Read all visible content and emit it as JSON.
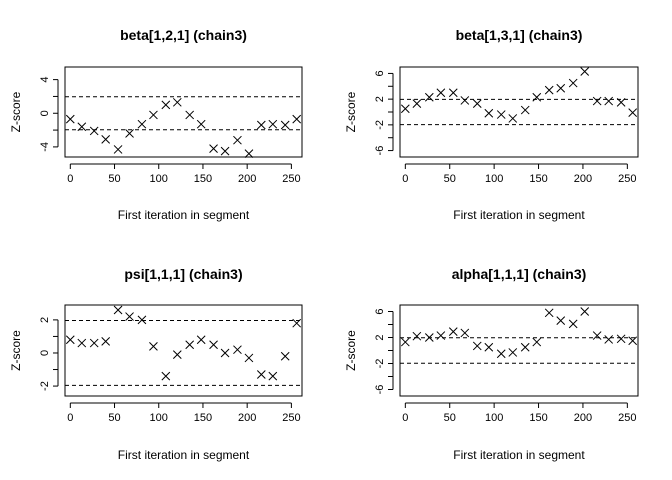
{
  "chart_data": [
    {
      "type": "scatter",
      "title": "beta[1,2,1] (chain3)",
      "xlabel": "First iteration in segment",
      "ylabel": "Z-score",
      "xlim": [
        -6,
        262
      ],
      "ylim": [
        -5.2,
        5.5
      ],
      "xticks": [
        0,
        50,
        100,
        150,
        200,
        250
      ],
      "xtick_labels": [
        "0",
        "50",
        "100",
        "150",
        "200",
        "250"
      ],
      "yticks": [
        -4,
        0,
        4
      ],
      "ytick_labels": [
        "-4",
        "0",
        "4"
      ],
      "yticks_minor": [
        -2,
        2
      ],
      "hlines": [
        -1.96,
        1.96
      ],
      "marker": "x",
      "x": [
        0,
        13,
        27,
        40,
        54,
        67,
        81,
        94,
        108,
        121,
        135,
        148,
        162,
        175,
        189,
        202,
        216,
        229,
        243,
        256
      ],
      "y": [
        -0.7,
        -1.6,
        -2.1,
        -3.1,
        -4.3,
        -2.4,
        -1.3,
        -0.2,
        1.0,
        1.3,
        -0.2,
        -1.3,
        -4.2,
        -4.5,
        -3.2,
        -4.8,
        -1.4,
        -1.3,
        -1.4,
        -0.7
      ]
    },
    {
      "type": "scatter",
      "title": "beta[1,3,1] (chain3)",
      "xlabel": "First iteration in segment",
      "ylabel": "Z-score",
      "xlim": [
        -6,
        262
      ],
      "ylim": [
        -7,
        7
      ],
      "xticks": [
        0,
        50,
        100,
        150,
        200,
        250
      ],
      "xtick_labels": [
        "0",
        "50",
        "100",
        "150",
        "200",
        "250"
      ],
      "yticks": [
        -6,
        -2,
        2,
        6
      ],
      "ytick_labels": [
        "-6",
        "-2",
        "2",
        "6"
      ],
      "yticks_minor": [
        -4,
        0,
        4
      ],
      "hlines": [
        -1.96,
        1.96
      ],
      "marker": "x",
      "x": [
        0,
        13,
        27,
        40,
        54,
        67,
        81,
        94,
        108,
        121,
        135,
        148,
        162,
        175,
        189,
        202,
        216,
        229,
        243,
        256
      ],
      "y": [
        0.5,
        1.3,
        2.3,
        3.0,
        3.0,
        1.8,
        1.3,
        -0.2,
        -0.4,
        -1.0,
        0.3,
        2.3,
        3.4,
        3.7,
        4.5,
        6.3,
        1.7,
        1.7,
        1.5,
        -0.1
      ]
    },
    {
      "type": "scatter",
      "title": "psi[1,1,1] (chain3)",
      "xlabel": "First iteration in segment",
      "ylabel": "Z-score",
      "xlim": [
        -6,
        262
      ],
      "ylim": [
        -2.6,
        2.9
      ],
      "xticks": [
        0,
        50,
        100,
        150,
        200,
        250
      ],
      "xtick_labels": [
        "0",
        "50",
        "100",
        "150",
        "200",
        "250"
      ],
      "yticks": [
        -2,
        0,
        2
      ],
      "ytick_labels": [
        "-2",
        "0",
        "2"
      ],
      "yticks_minor": [
        -1,
        1
      ],
      "hlines": [
        -1.96,
        1.96
      ],
      "marker": "x",
      "x": [
        0,
        13,
        27,
        40,
        54,
        67,
        81,
        94,
        108,
        121,
        135,
        148,
        162,
        175,
        189,
        202,
        216,
        229,
        243,
        256
      ],
      "y": [
        0.8,
        0.6,
        0.6,
        0.7,
        2.6,
        2.2,
        2.0,
        0.4,
        -1.4,
        -0.1,
        0.5,
        0.8,
        0.5,
        0.0,
        0.2,
        -0.3,
        -1.3,
        -1.4,
        -0.2,
        1.8
      ]
    },
    {
      "type": "scatter",
      "title": "alpha[1,1,1] (chain3)",
      "xlabel": "First iteration in segment",
      "ylabel": "Z-score",
      "xlim": [
        -6,
        262
      ],
      "ylim": [
        -7,
        7
      ],
      "xticks": [
        0,
        50,
        100,
        150,
        200,
        250
      ],
      "xtick_labels": [
        "0",
        "50",
        "100",
        "150",
        "200",
        "250"
      ],
      "yticks": [
        -6,
        -2,
        2,
        6
      ],
      "ytick_labels": [
        "-6",
        "-2",
        "2",
        "6"
      ],
      "yticks_minor": [
        -4,
        0,
        4
      ],
      "hlines": [
        -1.96,
        1.96
      ],
      "marker": "x",
      "x": [
        0,
        13,
        27,
        40,
        54,
        67,
        81,
        94,
        108,
        121,
        135,
        148,
        162,
        175,
        189,
        202,
        216,
        229,
        243,
        256
      ],
      "y": [
        1.3,
        2.2,
        2.0,
        2.3,
        2.9,
        2.7,
        0.7,
        0.5,
        -0.5,
        -0.3,
        0.5,
        1.3,
        5.8,
        4.6,
        4.1,
        6.0,
        2.3,
        1.7,
        1.8,
        1.5
      ]
    }
  ]
}
